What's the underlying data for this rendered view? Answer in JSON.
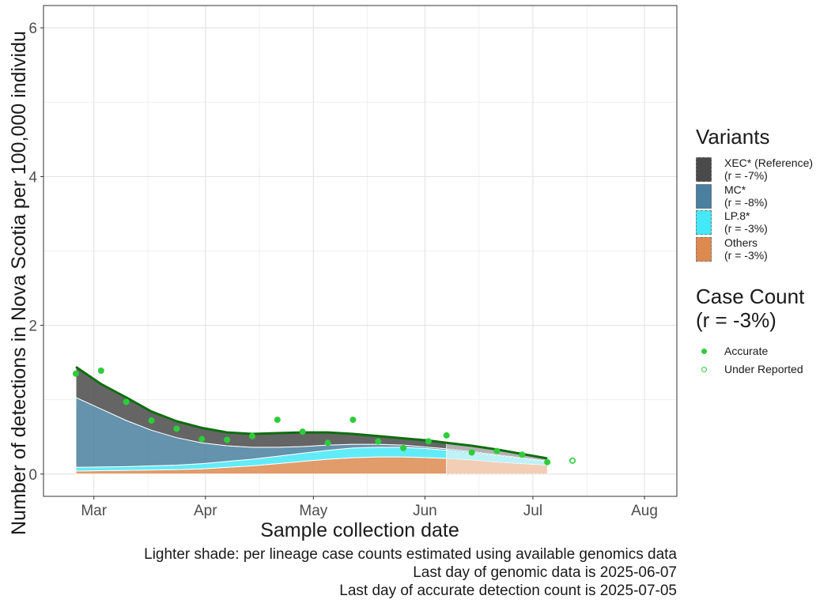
{
  "chart_data": {
    "type": "area",
    "xlabel": "Sample collection date",
    "ylabel": "Number of detections in Nova Scotia per 100,000 individu",
    "x_ticks": [
      "Mar",
      "Apr",
      "May",
      "Jun",
      "Jul",
      "Aug"
    ],
    "y_ticks": [
      "0",
      "2",
      "4",
      "6"
    ],
    "xlim": [
      "2025-02-15",
      "2025-08-10"
    ],
    "ylim": [
      -0.3,
      6.3
    ],
    "grid": true,
    "last_genomic_date": "2025-06-07",
    "last_accurate_date": "2025-07-05",
    "x": [
      "2025-02-24",
      "2025-03-03",
      "2025-03-10",
      "2025-03-17",
      "2025-03-24",
      "2025-03-31",
      "2025-04-07",
      "2025-04-14",
      "2025-04-21",
      "2025-04-28",
      "2025-05-05",
      "2025-05-12",
      "2025-05-19",
      "2025-05-26",
      "2025-06-02",
      "2025-06-07",
      "2025-06-14",
      "2025-06-21",
      "2025-06-28",
      "2025-07-05"
    ],
    "series": [
      {
        "name": "Others",
        "values": [
          0.04,
          0.045,
          0.05,
          0.055,
          0.06,
          0.07,
          0.09,
          0.11,
          0.14,
          0.17,
          0.2,
          0.22,
          0.23,
          0.23,
          0.22,
          0.21,
          0.19,
          0.16,
          0.14,
          0.12
        ]
      },
      {
        "name": "LP.8*",
        "values": [
          0.05,
          0.05,
          0.05,
          0.055,
          0.06,
          0.07,
          0.08,
          0.09,
          0.1,
          0.11,
          0.12,
          0.13,
          0.13,
          0.13,
          0.12,
          0.11,
          0.1,
          0.09,
          0.07,
          0.05
        ]
      },
      {
        "name": "MC*",
        "values": [
          0.94,
          0.78,
          0.62,
          0.48,
          0.37,
          0.28,
          0.21,
          0.16,
          0.12,
          0.09,
          0.07,
          0.05,
          0.04,
          0.03,
          0.02,
          0.02,
          0.015,
          0.01,
          0.01,
          0.01
        ]
      },
      {
        "name": "XEC* (Reference)",
        "values": [
          0.41,
          0.34,
          0.31,
          0.25,
          0.22,
          0.2,
          0.18,
          0.18,
          0.19,
          0.2,
          0.17,
          0.14,
          0.11,
          0.09,
          0.09,
          0.08,
          0.075,
          0.07,
          0.05,
          0.03
        ]
      }
    ],
    "total_line": [
      1.44,
      1.21,
      1.03,
      0.84,
      0.71,
      0.62,
      0.56,
      0.54,
      0.55,
      0.56,
      0.56,
      0.54,
      0.51,
      0.48,
      0.45,
      0.42,
      0.38,
      0.33,
      0.27,
      0.21
    ],
    "case_points": [
      {
        "date": "2025-02-24",
        "value": 1.35,
        "status": "Accurate"
      },
      {
        "date": "2025-03-03",
        "value": 1.39,
        "status": "Accurate"
      },
      {
        "date": "2025-03-10",
        "value": 0.97,
        "status": "Accurate"
      },
      {
        "date": "2025-03-17",
        "value": 0.72,
        "status": "Accurate"
      },
      {
        "date": "2025-03-24",
        "value": 0.61,
        "status": "Accurate"
      },
      {
        "date": "2025-03-31",
        "value": 0.47,
        "status": "Accurate"
      },
      {
        "date": "2025-04-07",
        "value": 0.46,
        "status": "Accurate"
      },
      {
        "date": "2025-04-14",
        "value": 0.51,
        "status": "Accurate"
      },
      {
        "date": "2025-04-21",
        "value": 0.73,
        "status": "Accurate"
      },
      {
        "date": "2025-04-28",
        "value": 0.57,
        "status": "Accurate"
      },
      {
        "date": "2025-05-05",
        "value": 0.42,
        "status": "Accurate"
      },
      {
        "date": "2025-05-12",
        "value": 0.73,
        "status": "Accurate"
      },
      {
        "date": "2025-05-19",
        "value": 0.44,
        "status": "Accurate"
      },
      {
        "date": "2025-05-26",
        "value": 0.35,
        "status": "Accurate"
      },
      {
        "date": "2025-06-02",
        "value": 0.44,
        "status": "Accurate"
      },
      {
        "date": "2025-06-07",
        "value": 0.52,
        "status": "Accurate"
      },
      {
        "date": "2025-06-14",
        "value": 0.29,
        "status": "Accurate"
      },
      {
        "date": "2025-06-21",
        "value": 0.31,
        "status": "Accurate"
      },
      {
        "date": "2025-06-28",
        "value": 0.26,
        "status": "Accurate"
      },
      {
        "date": "2025-07-05",
        "value": 0.16,
        "status": "Accurate"
      },
      {
        "date": "2025-07-12",
        "value": 0.18,
        "status": "Under Reported"
      }
    ]
  },
  "legend": {
    "title": "Variants",
    "items": [
      {
        "name": "XEC* (Reference)",
        "r": "(r = -7%)",
        "color": "#4a4a4a"
      },
      {
        "name": "MC*",
        "r": "(r = -8%)",
        "color": "#4a7f9e"
      },
      {
        "name": "LP.8*",
        "r": "(r = -3%)",
        "color": "#45e8f7"
      },
      {
        "name": "Others",
        "r": "(r = -3%)",
        "color": "#dd8a50"
      }
    ]
  },
  "case_legend": {
    "title": "Case Count",
    "subtitle": "(r = -3%)",
    "accurate": "Accurate",
    "under_reported": "Under Reported",
    "color": "#2ecc3a"
  },
  "colors": {
    "total_line": "#0d6e0d",
    "point": "#2ecc3a"
  },
  "caption": {
    "line1": "Lighter shade: per lineage case counts estimated using available genomics data",
    "line2": "Last day of genomic data is 2025-06-07",
    "line3": "Last day of accurate detection count is 2025-07-05"
  }
}
